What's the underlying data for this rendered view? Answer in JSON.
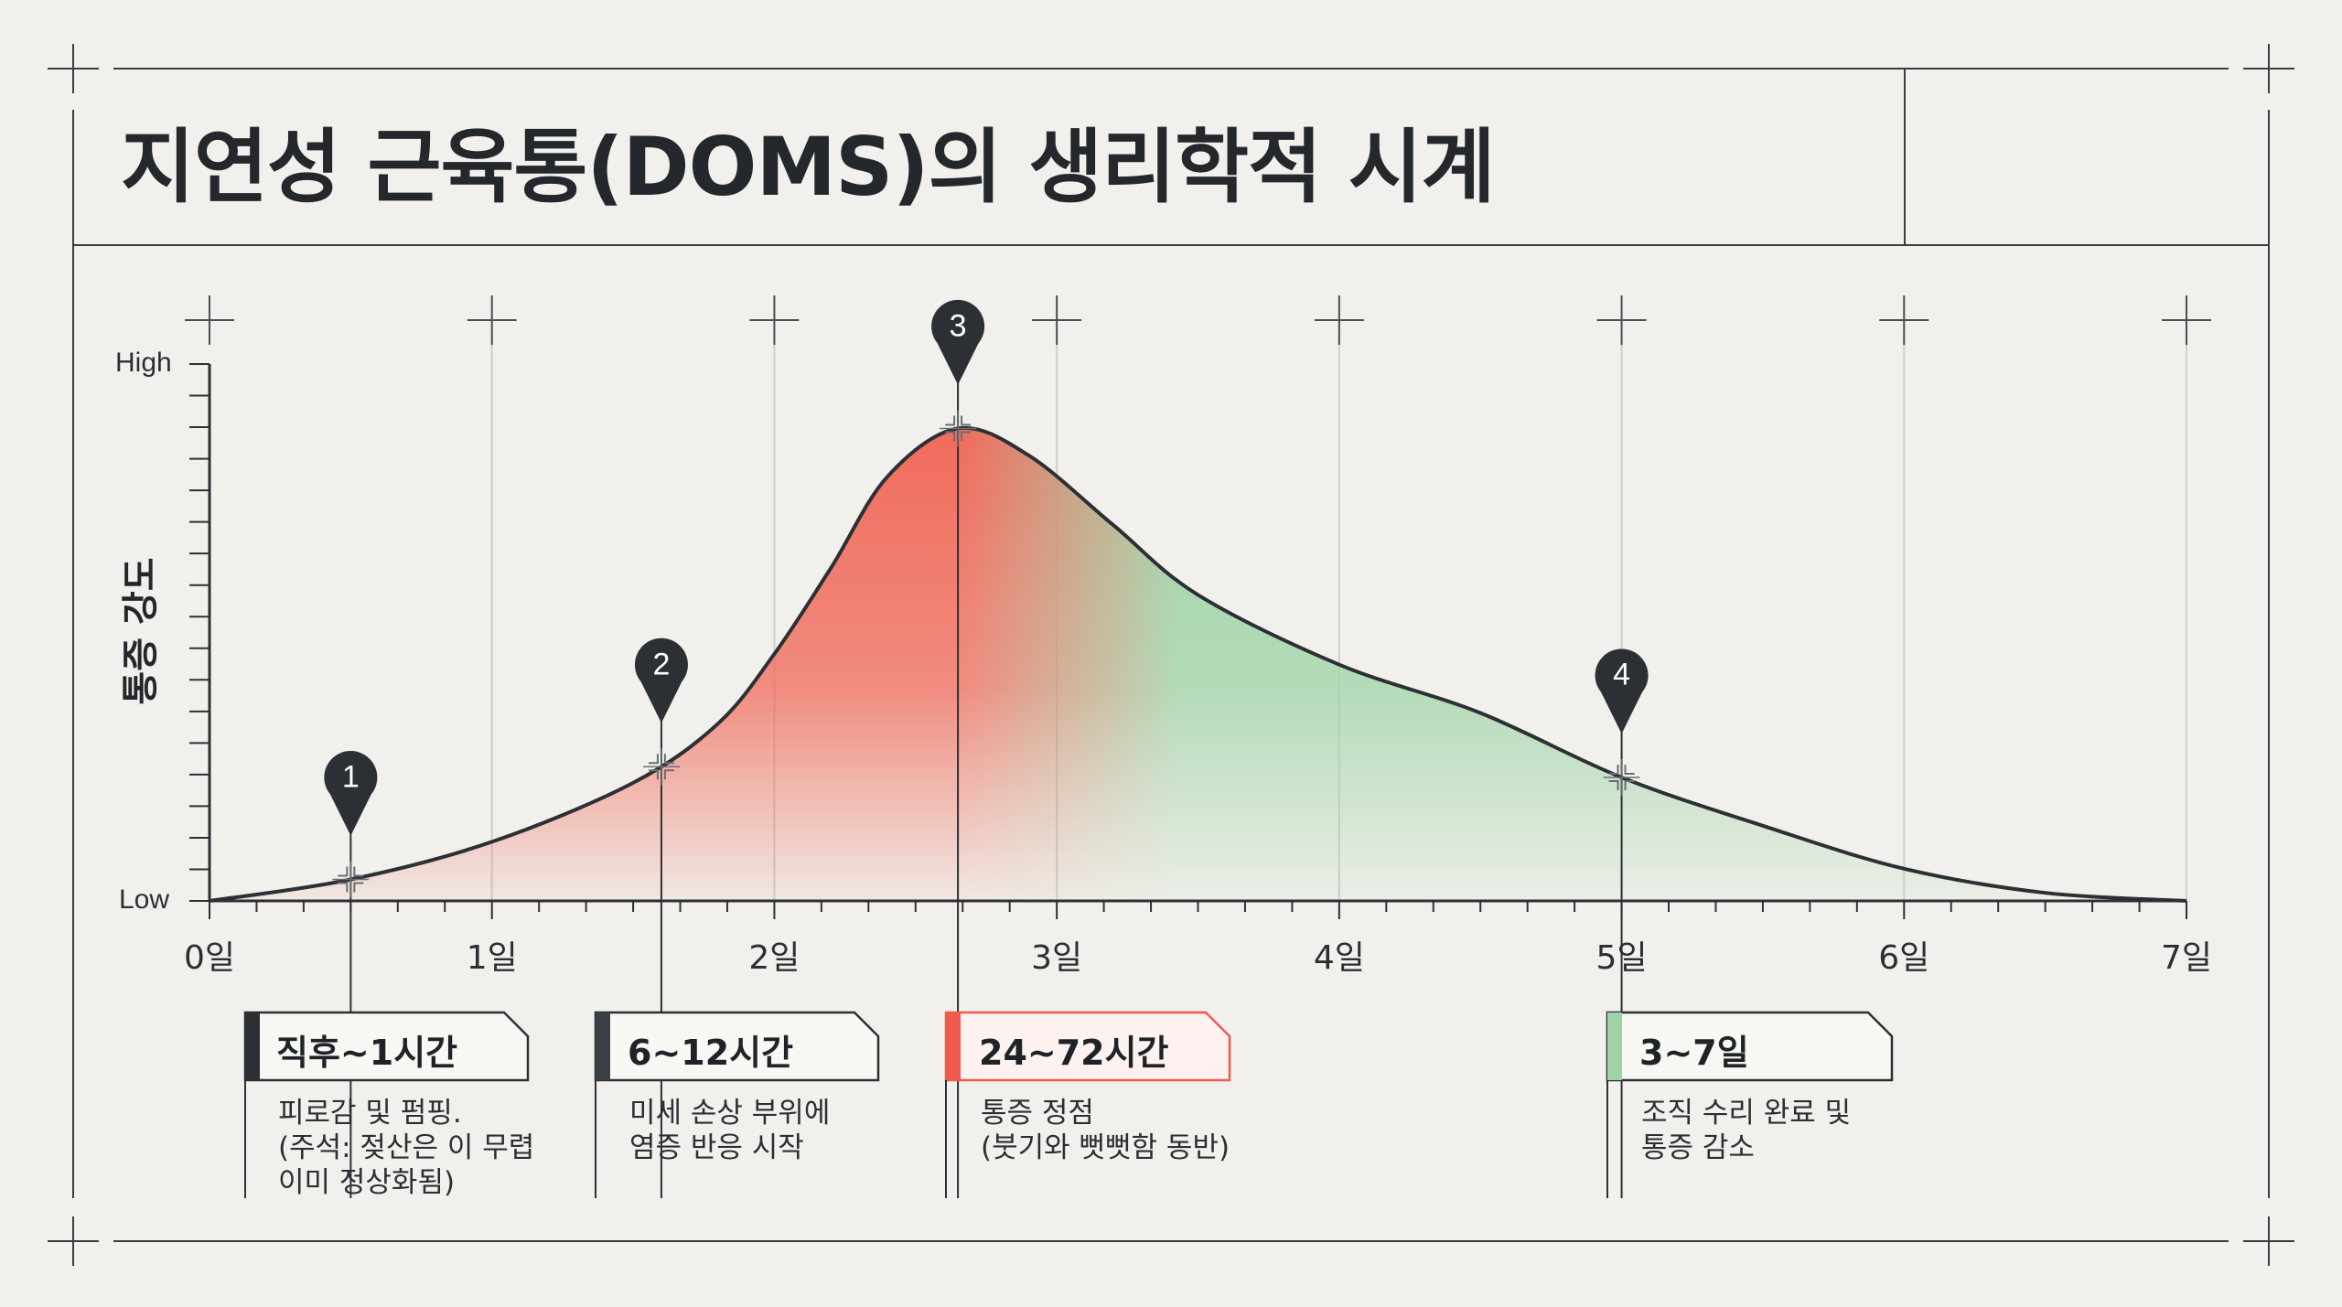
{
  "title": "지연성 근육통(DOMS)의 생리학적 시계",
  "chart_data": {
    "type": "area",
    "title": "지연성 근육통(DOMS)의 생리학적 시계",
    "ylabel": "통증 강도",
    "y_tick_labels": [
      "Low",
      "High"
    ],
    "xlabel": "",
    "x_tick_labels": [
      "0일",
      "1일",
      "2일",
      "3일",
      "4일",
      "5일",
      "6일",
      "7일"
    ],
    "xlim": [
      0,
      7
    ],
    "ylim": [
      0,
      1
    ],
    "grid": true,
    "colors": {
      "peak": "#f06a5a",
      "recovery": "#9fd3a6",
      "line": "#2c3035"
    },
    "curve": {
      "x": [
        0,
        0.5,
        1.0,
        1.5,
        1.8,
        2.0,
        2.2,
        2.4,
        2.65,
        2.9,
        3.2,
        3.5,
        4.0,
        4.5,
        5.0,
        5.5,
        6.0,
        6.5,
        7.0
      ],
      "y": [
        0,
        0.04,
        0.11,
        0.22,
        0.33,
        0.46,
        0.62,
        0.79,
        0.88,
        0.83,
        0.7,
        0.57,
        0.44,
        0.35,
        0.23,
        0.14,
        0.06,
        0.015,
        0
      ]
    },
    "markers": [
      {
        "num": "1",
        "x": 0.5,
        "y": 0.04,
        "label_y": 0.23
      },
      {
        "num": "2",
        "x": 1.6,
        "y": 0.25,
        "label_y": 0.44
      },
      {
        "num": "3",
        "x": 2.65,
        "y": 0.88,
        "label_y": 1.07
      },
      {
        "num": "4",
        "x": 5.0,
        "y": 0.23,
        "label_y": 0.42
      }
    ]
  },
  "phases": [
    {
      "title": "직후~1시간",
      "desc": "피로감 및 펌핑.\n(주석: 젖산은 이 무렵\n이미 정상화됨)",
      "accent": "#2c3035"
    },
    {
      "title": "6~12시간",
      "desc": "미세 손상 부위에\n염증 반응 시작",
      "accent": "#3a3f45"
    },
    {
      "title": "24~72시간",
      "desc": "통증 정점\n(붓기와 뻣뻣함 동반)",
      "accent": "#ef5a4c"
    },
    {
      "title": "3~7일",
      "desc": "조직 수리 완료 및\n통증 감소",
      "accent": "#9fd3a6"
    }
  ]
}
